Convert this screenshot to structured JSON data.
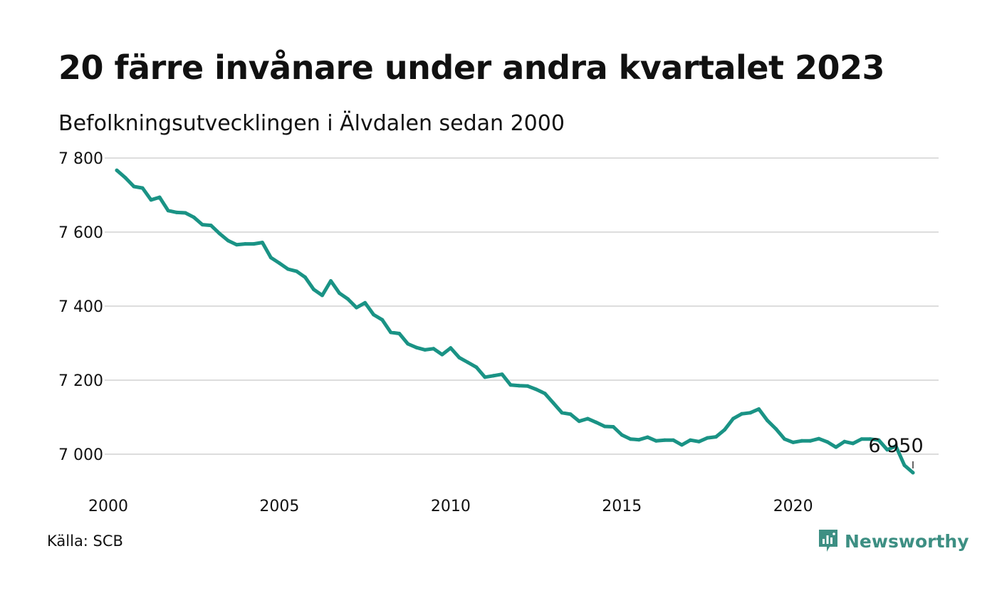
{
  "title": "20 färre invånare under andra kvartalet 2023",
  "subtitle": "Befolkningsutvecklingen i Älvdalen sedan 2000",
  "source": "Källa: SCB",
  "brand": {
    "name": "Newsworthy",
    "icon": "newsworthy-logo-icon",
    "color": "#3d8f83"
  },
  "colors": {
    "line": "#1a9385",
    "grid": "#dddddd",
    "text": "#111111"
  },
  "chart_data": {
    "type": "line",
    "grid": true,
    "ylim": [
      6915,
      7800
    ],
    "xlim": [
      2000,
      2024
    ],
    "yticks": [
      {
        "value": 7000,
        "label": "7 000"
      },
      {
        "value": 7200,
        "label": "7 200"
      },
      {
        "value": 7400,
        "label": "7 400"
      },
      {
        "value": 7600,
        "label": "7 600"
      },
      {
        "value": 7800,
        "label": "7 800"
      }
    ],
    "xticks": [
      {
        "value": 2000,
        "label": "2000"
      },
      {
        "value": 2005,
        "label": "2005"
      },
      {
        "value": 2010,
        "label": "2010"
      },
      {
        "value": 2015,
        "label": "2015"
      },
      {
        "value": 2020,
        "label": "2020"
      }
    ],
    "last_label": "6 950",
    "series": [
      {
        "x": [
          2000.25,
          2000.5,
          2000.75,
          2001.0,
          2001.25,
          2001.5,
          2001.75,
          2002.0,
          2002.25,
          2002.5,
          2002.75,
          2003.0,
          2003.25,
          2003.5,
          2003.75,
          2004.0,
          2004.25,
          2004.5,
          2004.75,
          2005.0,
          2005.25,
          2005.5,
          2005.75,
          2006.0,
          2006.25,
          2006.5,
          2006.75,
          2007.0,
          2007.25,
          2007.5,
          2007.75,
          2008.0,
          2008.25,
          2008.5,
          2008.75,
          2009.0,
          2009.25,
          2009.5,
          2009.75,
          2010.0,
          2010.25,
          2010.5,
          2010.75,
          2011.0,
          2011.25,
          2011.5,
          2011.75,
          2012.0,
          2012.25,
          2012.5,
          2012.75,
          2013.0,
          2013.25,
          2013.5,
          2013.75,
          2014.0,
          2014.25,
          2014.5,
          2014.75,
          2015.0,
          2015.25,
          2015.5,
          2015.75,
          2016.0,
          2016.25,
          2016.5,
          2016.75,
          2017.0,
          2017.25,
          2017.5,
          2017.75,
          2018.0,
          2018.25,
          2018.5,
          2018.75,
          2019.0,
          2019.25,
          2019.5,
          2019.75,
          2020.0,
          2020.25,
          2020.5,
          2020.75,
          2021.0,
          2021.25,
          2021.5,
          2021.75,
          2022.0,
          2022.25,
          2022.5,
          2022.75,
          2023.0,
          2023.25,
          2023.5
        ],
        "values": [
          7767,
          7747,
          7723,
          7719,
          7687,
          7694,
          7658,
          7653,
          7652,
          7640,
          7620,
          7618,
          7596,
          7577,
          7566,
          7568,
          7568,
          7572,
          7531,
          7516,
          7500,
          7494,
          7478,
          7445,
          7429,
          7468,
          7435,
          7419,
          7396,
          7409,
          7377,
          7363,
          7329,
          7326,
          7298,
          7288,
          7282,
          7285,
          7269,
          7287,
          7261,
          7248,
          7235,
          7208,
          7212,
          7216,
          7187,
          7185,
          7184,
          7175,
          7164,
          7138,
          7112,
          7108,
          7089,
          7096,
          7086,
          7075,
          7074,
          7052,
          7041,
          7039,
          7046,
          7036,
          7038,
          7038,
          7025,
          7038,
          7034,
          7044,
          7047,
          7066,
          7096,
          7109,
          7112,
          7122,
          7091,
          7068,
          7041,
          7032,
          7036,
          7036,
          7042,
          7033,
          7019,
          7034,
          7029,
          7041,
          7041,
          7038,
          7012,
          7022,
          6970,
          6950
        ]
      }
    ]
  }
}
